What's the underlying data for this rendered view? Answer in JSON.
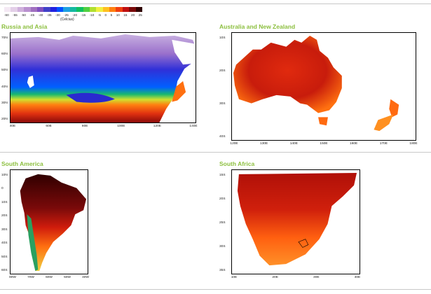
{
  "colorbar": {
    "ticks": [
      "-60",
      "-55",
      "-50",
      "-45",
      "-40",
      "-35",
      "-30",
      "-25",
      "-20",
      "-15",
      "-10",
      "-5",
      "0",
      "5",
      "10",
      "15",
      "20",
      "25"
    ],
    "unit": "(Celcius)",
    "colors": [
      "#f4e9f4",
      "#e3cfe8",
      "#cfb0dc",
      "#b990cf",
      "#a070c0",
      "#8050c0",
      "#4040c8",
      "#2020e0",
      "#0050ff",
      "#1ca0e0",
      "#14b8a0",
      "#10c060",
      "#50d040",
      "#b0e030",
      "#f0f040",
      "#ffc020",
      "#ff8010",
      "#f04010",
      "#c01010",
      "#7a0a0a",
      "#300000"
    ]
  },
  "panels": [
    {
      "title": "Russia and Asia",
      "lat_labels": [
        "70N",
        "60N",
        "50N",
        "40N",
        "30N",
        "20N"
      ],
      "lon_labels": [
        "40E",
        "60E",
        "80E",
        "100E",
        "120E",
        "140E"
      ]
    },
    {
      "title": "Australia and New Zealand",
      "lat_labels": [
        "10S",
        "20S",
        "30S",
        "40S"
      ],
      "lon_labels": [
        "120E",
        "130E",
        "140E",
        "150E",
        "160E",
        "170E",
        "180E"
      ]
    },
    {
      "title": "South America",
      "lat_labels": [
        "10N",
        "0",
        "10S",
        "20S",
        "30S",
        "40S",
        "50S",
        "60S"
      ],
      "lon_labels": [
        "80W",
        "70W",
        "60W",
        "50W",
        "40W"
      ]
    },
    {
      "title": "South Africa",
      "lat_labels": [
        "15S",
        "20S",
        "25S",
        "30S",
        "35S"
      ],
      "lon_labels": [
        "10E",
        "20E",
        "30E",
        "40E"
      ]
    }
  ]
}
